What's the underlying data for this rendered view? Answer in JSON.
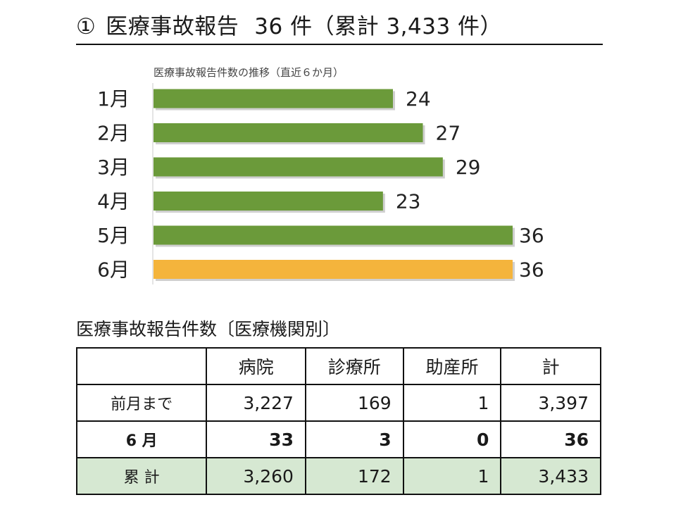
{
  "title": {
    "number": "①",
    "text": "医療事故報告",
    "count": "36 件（累計 3,433 件）"
  },
  "chart_data": {
    "type": "bar",
    "orientation": "horizontal",
    "title": "医療事故報告件数の推移（直近６か月）",
    "categories": [
      "1月",
      "2月",
      "3月",
      "4月",
      "5月",
      "6月"
    ],
    "values": [
      24,
      27,
      29,
      23,
      36,
      36
    ],
    "bar_colors": [
      "#6b9a3a",
      "#6b9a3a",
      "#6b9a3a",
      "#6b9a3a",
      "#6b9a3a",
      "#f4b43c"
    ],
    "xlim": [
      0,
      36
    ],
    "grid": false,
    "legend": "none"
  },
  "table": {
    "title": "医療事故報告件数〔医療機関別〕",
    "headers": [
      "",
      "病院",
      "診療所",
      "助産所",
      "計"
    ],
    "rows": [
      [
        "前月まで",
        "3,227",
        "169",
        "1",
        "3,397"
      ],
      [
        "6 月",
        "33",
        "3",
        "0",
        "36"
      ],
      [
        "累 計",
        "3,260",
        "172",
        "1",
        "3,433"
      ]
    ],
    "total_row_color": "#d6e8d2"
  }
}
